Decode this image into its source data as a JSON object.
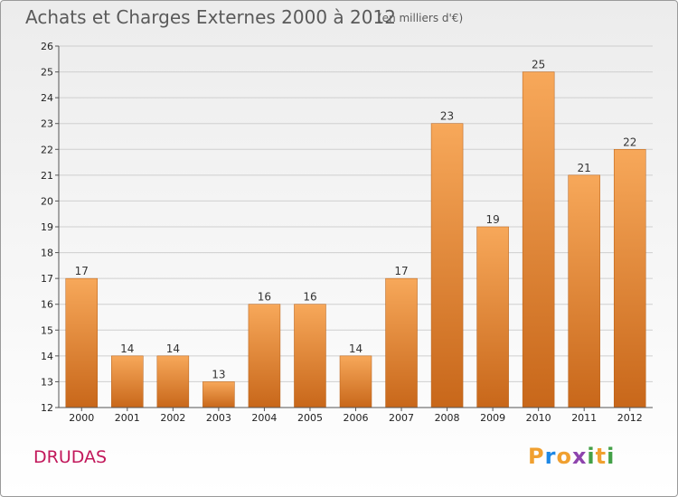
{
  "header": {
    "title": "Achats et Charges Externes 2000 à 2012",
    "unit": "(en milliers d'€)"
  },
  "commune": "DRUDAS",
  "logo": {
    "text": "Proxiti",
    "letters": [
      "P",
      "r",
      "o",
      "x",
      "i",
      "t",
      "i"
    ],
    "colors": [
      "#f0a030",
      "#1e88e5",
      "#f0a030",
      "#8e44ad",
      "#43a047",
      "#f0a030",
      "#43a047"
    ]
  },
  "colors": {
    "bar_top": "#f7a85a",
    "bar_bottom": "#c8671a",
    "bar_stroke": "#b55e16",
    "grid": "#cfcfcf",
    "axis": "#555555"
  },
  "chart_data": {
    "type": "bar",
    "title": "Achats et Charges Externes 2000 à 2012",
    "subtitle": "(en milliers d'€)",
    "categories": [
      "2000",
      "2001",
      "2002",
      "2003",
      "2004",
      "2005",
      "2006",
      "2007",
      "2008",
      "2009",
      "2010",
      "2011",
      "2012"
    ],
    "values": [
      17,
      14,
      14,
      13,
      16,
      16,
      14,
      17,
      23,
      19,
      25,
      21,
      22
    ],
    "ylim": [
      12,
      26
    ],
    "yticks": [
      12,
      13,
      14,
      15,
      16,
      17,
      18,
      19,
      20,
      21,
      22,
      23,
      24,
      25,
      26
    ],
    "grid": true,
    "legend": false,
    "xlabel": "",
    "ylabel": ""
  }
}
